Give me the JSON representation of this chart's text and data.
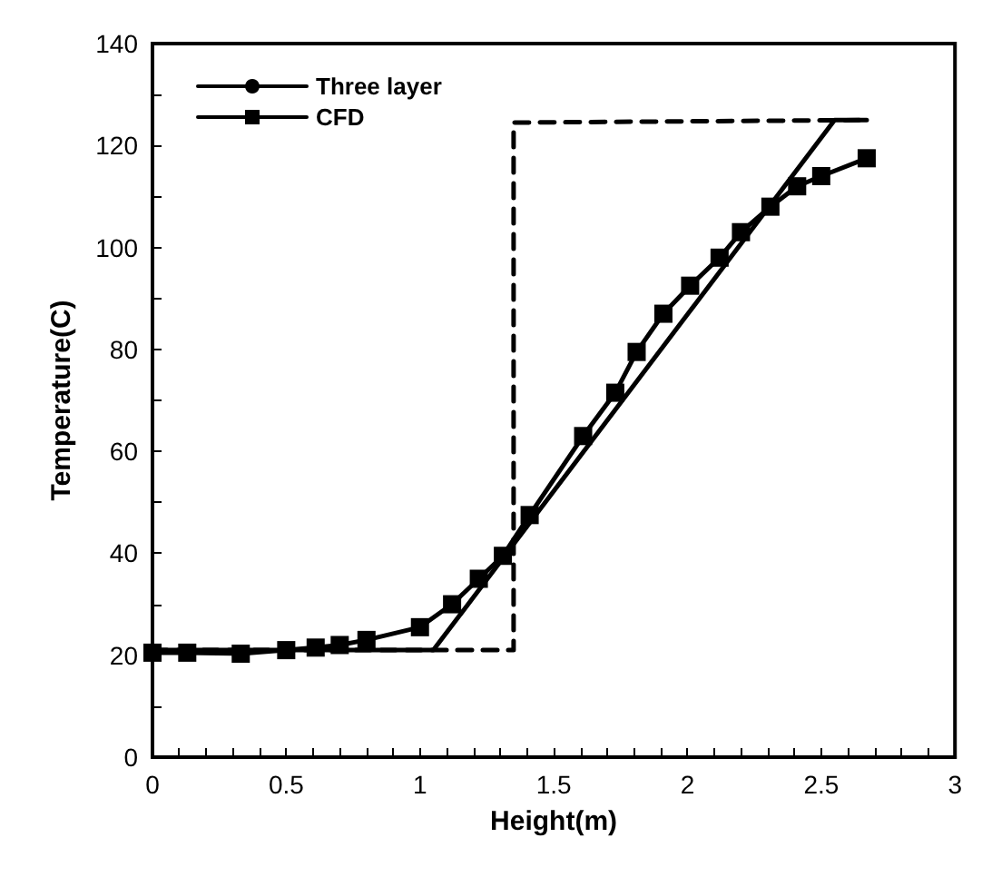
{
  "chart_data": {
    "type": "line",
    "xlabel": "Height(m)",
    "ylabel": "Temperature(C)",
    "xlim": [
      0,
      3
    ],
    "ylim": [
      0,
      140
    ],
    "xticks": [
      0,
      {
        "value": 0.1,
        "label": null
      },
      {
        "value": 0.2,
        "label": null
      },
      {
        "value": 0.3,
        "label": null
      },
      {
        "value": 0.4,
        "label": null
      },
      0.5,
      {
        "value": 0.6,
        "label": null
      },
      {
        "value": 0.7,
        "label": null
      },
      {
        "value": 0.8,
        "label": null
      },
      {
        "value": 0.9,
        "label": null
      },
      1,
      {
        "value": 1.1,
        "label": null
      },
      {
        "value": 1.2,
        "label": null
      },
      {
        "value": 1.3,
        "label": null
      },
      {
        "value": 1.4,
        "label": null
      },
      1.5,
      {
        "value": 1.6,
        "label": null
      },
      {
        "value": 1.7,
        "label": null
      },
      {
        "value": 1.8,
        "label": null
      },
      {
        "value": 1.9,
        "label": null
      },
      2,
      {
        "value": 2.1,
        "label": null
      },
      {
        "value": 2.2,
        "label": null
      },
      {
        "value": 2.3,
        "label": null
      },
      {
        "value": 2.4,
        "label": null
      },
      2.5,
      {
        "value": 2.6,
        "label": null
      },
      {
        "value": 2.7,
        "label": null
      },
      {
        "value": 2.8,
        "label": null
      },
      {
        "value": 2.9,
        "label": null
      },
      3
    ],
    "yticks": [
      0,
      {
        "value": 10,
        "label": null
      },
      20,
      {
        "value": 30,
        "label": null
      },
      40,
      {
        "value": 50,
        "label": null
      },
      60,
      {
        "value": 70,
        "label": null
      },
      80,
      {
        "value": 90,
        "label": null
      },
      100,
      {
        "value": 110,
        "label": null
      },
      120,
      {
        "value": 130,
        "label": null
      },
      140
    ],
    "grid": false,
    "legend": "top left",
    "series": [
      {
        "color": "#000000",
        "line_style": "dashed",
        "marker": "none",
        "x": [
          0,
          1.35,
          1.35,
          2.67
        ],
        "values": [
          21,
          21,
          124.5,
          125
        ]
      },
      {
        "name": "Three layer",
        "color": "#000000",
        "line_style": "solid",
        "marker": "none",
        "x": [
          0,
          1.05,
          2.55,
          2.67
        ],
        "values": [
          21,
          21,
          125,
          125
        ]
      },
      {
        "name": "CFD",
        "color": "#000000",
        "line_style": "solid",
        "marker": "square",
        "x": [
          0,
          0.13,
          0.33,
          0.5,
          0.61,
          0.7,
          0.8,
          1.0,
          1.12,
          1.22,
          1.31,
          1.41,
          1.61,
          1.73,
          1.81,
          1.91,
          2.01,
          2.12,
          2.2,
          2.31,
          2.41,
          2.5,
          2.67
        ],
        "values": [
          20.5,
          20.5,
          20.3,
          21,
          21.5,
          22,
          23,
          25.5,
          30,
          35,
          39.5,
          47.5,
          63,
          71.5,
          79.5,
          87,
          92.5,
          98,
          103,
          108,
          112,
          114,
          117.5
        ]
      }
    ]
  }
}
